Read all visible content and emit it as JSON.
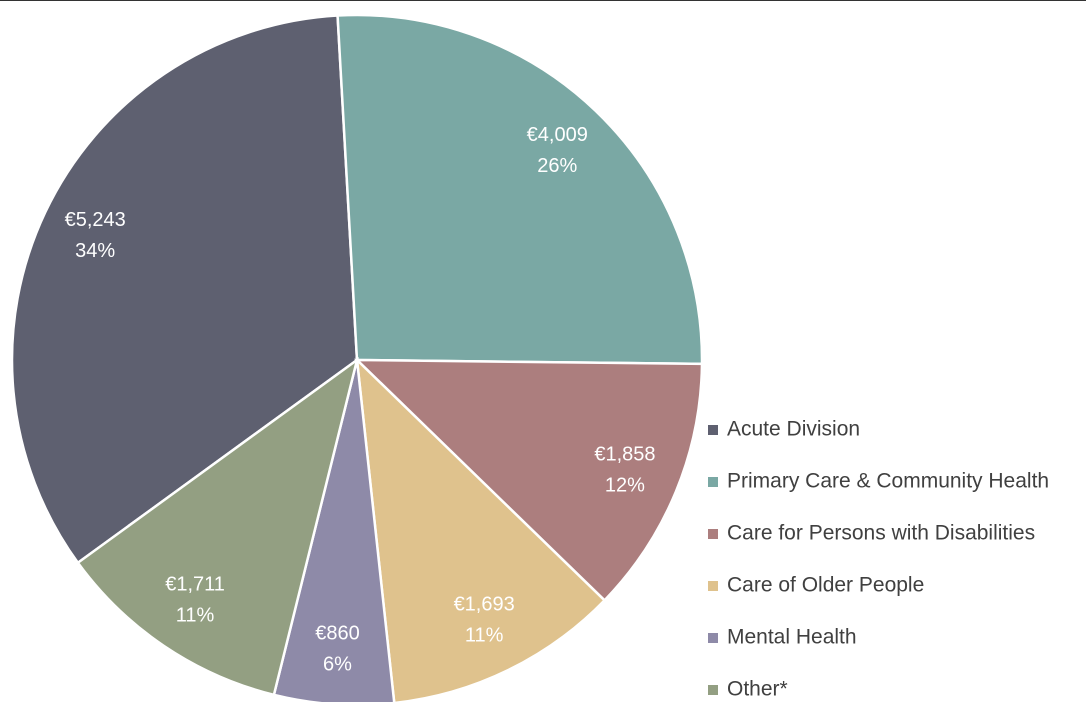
{
  "chart_data": {
    "type": "pie",
    "categories": [
      "Acute Division",
      "Primary Care & Community Health",
      "Care for Persons with Disabilities",
      "Care of Older People",
      "Mental Health",
      "Other*"
    ],
    "values": [
      5243,
      4009,
      1858,
      1693,
      860,
      1711
    ],
    "value_labels": [
      "€5,243",
      "€4,009",
      "€1,858",
      "€1,693",
      "€860",
      "€1,711"
    ],
    "percent_labels": [
      "34%",
      "26%",
      "12%",
      "11%",
      "6%",
      "11%"
    ],
    "colors": [
      "#5e6070",
      "#7aa8a4",
      "#ac7e7e",
      "#dfc28d",
      "#8e8aa8",
      "#939f82"
    ],
    "legend": "right"
  }
}
